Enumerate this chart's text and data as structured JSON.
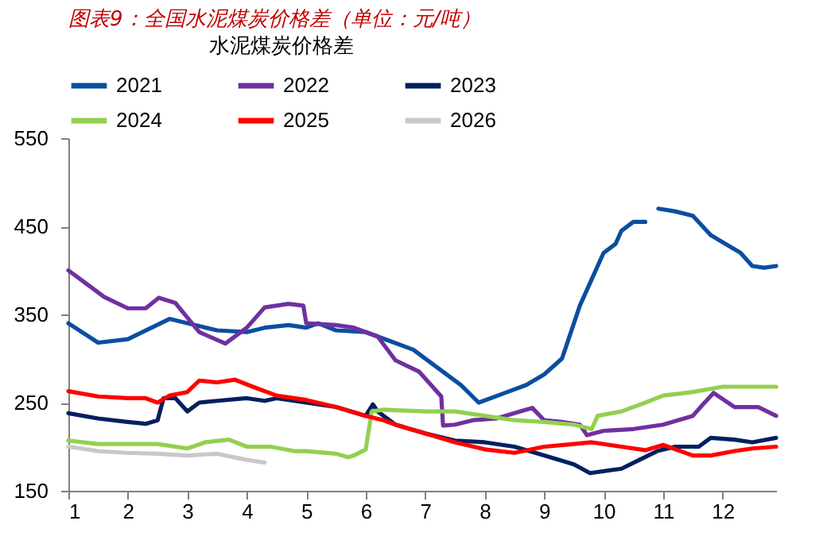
{
  "chart_data": {
    "type": "line",
    "title": "图表9：全国水泥煤炭价格差（单位：元/吨）",
    "legend_title": "水泥煤炭价格差",
    "legend": "top",
    "grid": false,
    "line_style": "solid",
    "marker": "none",
    "xlim": [
      1,
      12.9
    ],
    "xticks": [
      1,
      2,
      3,
      4,
      5,
      6,
      7,
      8,
      9,
      10,
      11,
      12
    ],
    "ylim": [
      150,
      550
    ],
    "yticks": [
      150,
      250,
      350,
      450,
      550
    ],
    "series": [
      {
        "name": "2021",
        "color": "#0a4ea0",
        "x": [
          1,
          1.5,
          2,
          2.7,
          3,
          3.5,
          4,
          4.3,
          4.7,
          5,
          5.2,
          5.5,
          6,
          6.4,
          6.8,
          7.2,
          7.6,
          7.9,
          8.3,
          8.7,
          9,
          9.3,
          9.4,
          9.6,
          9.8,
          10,
          10.2,
          10.3,
          10.5,
          10.7,
          10.8,
          10.92,
          11.2,
          11.5,
          11.8,
          12,
          12.3,
          12.5,
          12.7,
          12.9
        ],
        "values": [
          340,
          318,
          322,
          345,
          340,
          332,
          330,
          335,
          338,
          335,
          340,
          332,
          330,
          320,
          310,
          290,
          270,
          250,
          260,
          270,
          282,
          300,
          320,
          360,
          390,
          420,
          430,
          445,
          455,
          455,
          null,
          470,
          467,
          462,
          440,
          432,
          420,
          405,
          403,
          405
        ]
      },
      {
        "name": "2022",
        "color": "#7030a0",
        "x": [
          1,
          1.3,
          1.6,
          2,
          2.3,
          2.52,
          2.8,
          3.2,
          3.64,
          4,
          4.3,
          4.7,
          4.95,
          5,
          5.5,
          5.8,
          6.2,
          6.5,
          6.9,
          7.27,
          7.3,
          7.5,
          7.8,
          8.2,
          8.6,
          8.8,
          9,
          9.3,
          9.6,
          9.72,
          10,
          10.5,
          11,
          11.5,
          11.67,
          11.85,
          12.2,
          12.6,
          12.9
        ],
        "values": [
          400,
          385,
          370,
          357,
          357,
          369,
          363,
          330,
          317,
          335,
          358,
          362,
          360,
          340,
          338,
          335,
          325,
          298,
          285,
          257,
          224,
          225,
          230,
          232,
          240,
          244,
          230,
          228,
          225,
          213,
          218,
          220,
          225,
          235,
          248,
          261,
          245,
          245,
          235
        ]
      },
      {
        "name": "2023",
        "color": "#002060",
        "x": [
          1,
          1.5,
          2,
          2.3,
          2.5,
          2.6,
          2.8,
          3,
          3.2,
          3.5,
          4,
          4.3,
          4.5,
          5,
          5.5,
          6,
          6.12,
          6.2,
          6.5,
          7,
          7.5,
          8,
          8.5,
          9,
          9.5,
          9.77,
          10.3,
          10.6,
          10.9,
          11.2,
          11.6,
          11.8,
          12.2,
          12.5,
          12.9
        ],
        "values": [
          238,
          232,
          228,
          226,
          230,
          255,
          255,
          240,
          250,
          252,
          255,
          252,
          255,
          250,
          245,
          235,
          248,
          240,
          225,
          215,
          207,
          205,
          200,
          190,
          180,
          170,
          175,
          185,
          195,
          200,
          200,
          210,
          208,
          205,
          210
        ]
      },
      {
        "name": "2024",
        "color": "#92d050",
        "x": [
          1,
          1.5,
          2,
          2.5,
          3,
          3.3,
          3.7,
          4,
          4.4,
          4.8,
          5,
          5.5,
          5.7,
          5.8,
          6,
          6.1,
          6.3,
          7,
          7.5,
          8,
          8.5,
          9,
          9.5,
          9.8,
          9.9,
          10.3,
          10.7,
          11,
          11.5,
          12,
          12.9
        ],
        "values": [
          207,
          203,
          203,
          203,
          198,
          205,
          208,
          200,
          200,
          195,
          195,
          192,
          188,
          190,
          197,
          240,
          242,
          240,
          240,
          235,
          230,
          228,
          225,
          220,
          235,
          240,
          250,
          258,
          262,
          268,
          268
        ]
      },
      {
        "name": "2025",
        "color": "#ff0000",
        "x": [
          1,
          1.5,
          2,
          2.3,
          2.5,
          2.7,
          3,
          3.2,
          3.5,
          3.8,
          4.1,
          4.5,
          5,
          5.5,
          6,
          6.3,
          6.5,
          7,
          7.5,
          8,
          8.5,
          9,
          9.5,
          9.8,
          10.3,
          10.7,
          11,
          11.5,
          11.8,
          12.2,
          12.5,
          12.9
        ],
        "values": [
          263,
          257,
          255,
          255,
          250,
          258,
          262,
          275,
          273,
          276,
          268,
          258,
          253,
          245,
          235,
          230,
          225,
          215,
          205,
          197,
          193,
          200,
          203,
          205,
          200,
          196,
          202,
          190,
          190,
          195,
          198,
          200
        ]
      },
      {
        "name": "2026",
        "color": "#c8c8c8",
        "x": [
          1,
          1.5,
          2,
          2.5,
          3,
          3.5,
          4,
          4.3
        ],
        "values": [
          200,
          195,
          193,
          192,
          190,
          192,
          185,
          182
        ]
      }
    ]
  }
}
